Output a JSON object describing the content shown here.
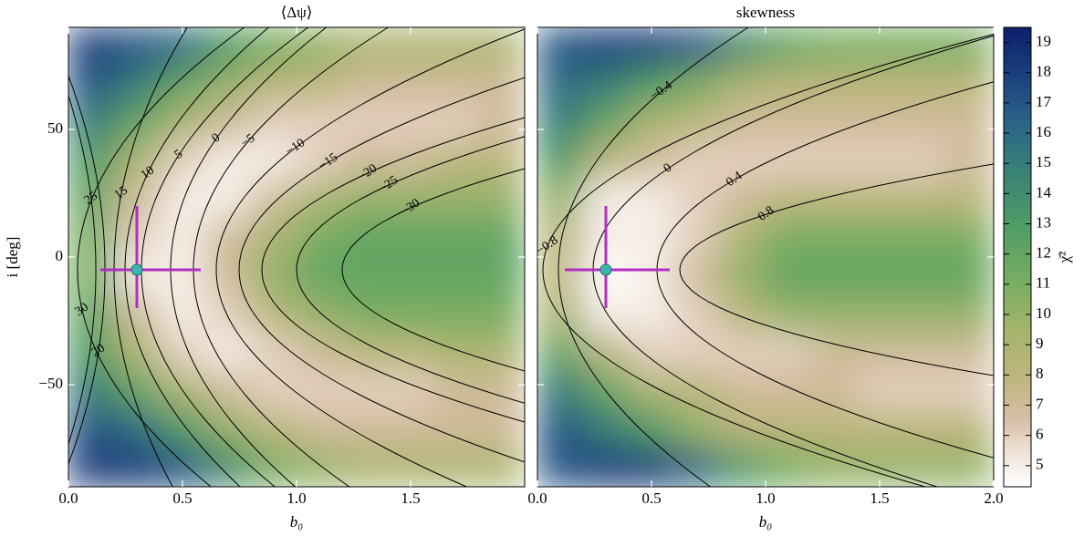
{
  "chart_data": [
    {
      "type": "heatmap",
      "title": "⟨Δψ⟩",
      "x_label": "b₀",
      "y_label": "i [deg]",
      "x": [
        0.1,
        0.3,
        0.5,
        0.7,
        0.9,
        1.1,
        1.3,
        1.5,
        1.7,
        1.9
      ],
      "y": [
        82.5,
        67.5,
        52.5,
        37.5,
        22.5,
        7.5,
        -7.5,
        -22.5,
        -37.5,
        -52.5,
        -67.5,
        -82.5
      ],
      "values": [
        [
          18,
          17,
          16,
          13,
          11,
          10,
          9,
          9,
          9,
          9
        ],
        [
          17,
          15,
          12,
          10,
          8,
          8,
          7,
          7,
          7,
          7
        ],
        [
          15,
          12,
          9,
          7,
          6,
          6,
          6,
          6,
          6,
          7
        ],
        [
          13,
          9,
          6,
          5,
          5,
          6,
          7,
          7,
          8,
          8
        ],
        [
          12,
          7,
          5,
          5,
          7,
          9,
          10,
          10,
          10,
          10
        ],
        [
          11,
          6,
          5,
          7,
          9,
          11,
          12,
          12,
          12,
          12
        ],
        [
          11,
          5,
          5,
          7,
          10,
          12,
          12,
          12,
          12,
          12
        ],
        [
          12,
          7,
          5,
          6,
          8,
          10,
          11,
          11,
          11,
          11
        ],
        [
          13,
          9,
          6,
          5,
          6,
          7,
          8,
          8,
          9,
          9
        ],
        [
          15,
          12,
          9,
          7,
          6,
          6,
          6,
          6,
          7,
          7
        ],
        [
          17,
          16,
          13,
          10,
          8,
          7,
          7,
          7,
          7,
          7
        ],
        [
          18,
          18,
          17,
          14,
          11,
          10,
          9,
          9,
          9,
          9
        ]
      ],
      "xlim": [
        0,
        2
      ],
      "ylim": [
        -90,
        90
      ],
      "xticks": [
        {
          "value": 0,
          "label": "0.0"
        },
        {
          "value": 0.5,
          "label": "0.5"
        },
        {
          "value": 1,
          "label": "1.0"
        },
        {
          "value": 1.5,
          "label": "1.5"
        }
      ],
      "yticks": [
        {
          "value": -50,
          "label": "−50"
        },
        0,
        50
      ],
      "contour_levels": [
        {
          "value": 25,
          "label": "25"
        },
        {
          "value": 15,
          "label": "15"
        },
        {
          "value": 10,
          "label": "10"
        },
        {
          "value": 5,
          "label": "5"
        },
        {
          "value": 0,
          "label": "0"
        },
        {
          "value": -5,
          "label": "−5"
        },
        {
          "value": -10,
          "label": "−10"
        },
        {
          "value": -15,
          "label": "−15"
        },
        {
          "value": -20,
          "label": "−20"
        },
        {
          "value": -25,
          "label": "−25"
        },
        {
          "value": -30,
          "label": "−30"
        },
        {
          "value": 30,
          "label": "30"
        },
        {
          "value": 20,
          "label": "20"
        }
      ],
      "best_fit": {
        "x": 0.3,
        "y": -5,
        "xrange": [
          0.14,
          0.58
        ],
        "yrange": [
          -20,
          20
        ]
      }
    },
    {
      "type": "heatmap",
      "title": "skewness",
      "x_label": "b₀",
      "x": [
        0.1,
        0.3,
        0.5,
        0.7,
        0.9,
        1.1,
        1.3,
        1.5,
        1.7,
        1.9
      ],
      "y": [
        82.5,
        67.5,
        52.5,
        37.5,
        22.5,
        7.5,
        -7.5,
        -22.5,
        -37.5,
        -52.5,
        -67.5,
        -82.5
      ],
      "values": [
        [
          17,
          18,
          18,
          17,
          14,
          12,
          11,
          11,
          11,
          11
        ],
        [
          16,
          15,
          13,
          11,
          9,
          8,
          8,
          8,
          8,
          8
        ],
        [
          15,
          12,
          9,
          8,
          7,
          7,
          7,
          7,
          7,
          7
        ],
        [
          13,
          8,
          7,
          6,
          6,
          6,
          6,
          6,
          6,
          7
        ],
        [
          10,
          5,
          5,
          6,
          7,
          8,
          8,
          8,
          8,
          8
        ],
        [
          8,
          5,
          5,
          6,
          9,
          11,
          11,
          11,
          11,
          11
        ],
        [
          8,
          4,
          5,
          7,
          10,
          12,
          12,
          12,
          12,
          12
        ],
        [
          9,
          5,
          5,
          6,
          8,
          10,
          10,
          10,
          10,
          10
        ],
        [
          12,
          8,
          6,
          6,
          6,
          6,
          7,
          7,
          7,
          7
        ],
        [
          15,
          12,
          9,
          8,
          7,
          7,
          7,
          6,
          6,
          6
        ],
        [
          17,
          15,
          13,
          10,
          8,
          8,
          8,
          8,
          8,
          8
        ],
        [
          17,
          18,
          18,
          16,
          13,
          11,
          10,
          10,
          10,
          10
        ]
      ],
      "xlim": [
        0,
        2
      ],
      "ylim": [
        -90,
        90
      ],
      "xticks": [
        {
          "value": 0,
          "label": "0.0"
        },
        {
          "value": 0.5,
          "label": "0.5"
        },
        {
          "value": 1,
          "label": "1.0"
        },
        {
          "value": 1.5,
          "label": "1.5"
        },
        {
          "value": 2,
          "label": "2.0"
        }
      ],
      "contour_levels": [
        {
          "value": -0.4,
          "label": "−0.4"
        },
        {
          "value": 0,
          "label": "0"
        },
        {
          "value": 0.4,
          "label": "0.4"
        },
        {
          "value": 0.8,
          "label": "0.8"
        },
        {
          "value": -0.8,
          "label": "−0.8"
        }
      ],
      "best_fit": {
        "x": 0.3,
        "y": -5,
        "xrange": [
          0.12,
          0.58
        ],
        "yrange": [
          -20,
          20
        ]
      }
    }
  ],
  "colorbar": {
    "label": "χ̄²",
    "clim": [
      4.3,
      19.5
    ],
    "ticks": [
      5,
      6,
      7,
      8,
      9,
      10,
      11,
      12,
      13,
      14,
      15,
      16,
      17,
      18,
      19
    ],
    "colormap": [
      {
        "value": 4.3,
        "color": "#ffffff"
      },
      {
        "value": 5.5,
        "color": "#efe1d6"
      },
      {
        "value": 6.5,
        "color": "#d8bea7"
      },
      {
        "value": 8,
        "color": "#bcb67c"
      },
      {
        "value": 9.5,
        "color": "#a5b46c"
      },
      {
        "value": 11,
        "color": "#79ae62"
      },
      {
        "value": 13,
        "color": "#4e9c66"
      },
      {
        "value": 15,
        "color": "#357d79"
      },
      {
        "value": 16.5,
        "color": "#2a6188"
      },
      {
        "value": 18,
        "color": "#1a3e7c"
      },
      {
        "value": 19.5,
        "color": "#0c1f6b"
      }
    ],
    "marker_color": "#b22fc2",
    "point_color": "#3fb3ad",
    "contour_color": "#000000"
  }
}
